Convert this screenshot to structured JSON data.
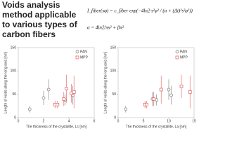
{
  "title_lines": [
    "Voids analysis",
    "method applicable",
    "to various types of",
    "carbon fibers"
  ],
  "equations": [
    "I_fiber(sφ) = c_fiber exp(−4ln2·s²φ² / (α + (Δt)²s²φ²))",
    "α = 4ln2/πs² + βπ²"
  ],
  "chart_data": [
    {
      "type": "scatter",
      "x_label": "The thickness of the crystallite, Lc [nm]",
      "y_label": "Length of voids along the long axis [nm]",
      "xlim": [
        0,
        6
      ],
      "xticks": [
        0,
        2,
        4,
        6
      ],
      "ylim": [
        0,
        150
      ],
      "yticks": [
        0,
        50,
        100,
        150
      ],
      "legend": "upper right",
      "series": [
        {
          "name": "PAN",
          "color": "#777777",
          "marker": "circle",
          "x": [
            0.9,
            2.0,
            2.4,
            3.7,
            4.3
          ],
          "values": [
            18,
            42,
            60,
            38,
            48
          ],
          "errors": [
            7,
            15,
            22,
            12,
            20
          ]
        },
        {
          "name": "MPP",
          "color": "#e05a5a",
          "marker": "square",
          "x": [
            2.9,
            3.1,
            3.6,
            3.8,
            4.2,
            4.4
          ],
          "values": [
            28,
            28,
            40,
            62,
            52,
            55
          ],
          "errors": [
            8,
            8,
            15,
            30,
            20,
            35
          ]
        }
      ]
    },
    {
      "type": "scatter",
      "x_label": "The thickness of the crystallite, La [nm]",
      "y_label": "Length of voids along the long axis [nm]",
      "xlim": [
        0,
        15
      ],
      "xticks": [
        0,
        5,
        10,
        15
      ],
      "ylim": [
        0,
        150
      ],
      "yticks": [
        0,
        50,
        100,
        150
      ],
      "legend": "upper right",
      "series": [
        {
          "name": "PAN",
          "color": "#777777",
          "marker": "circle",
          "x": [
            1.5,
            6.8,
            7.6,
            10.0,
            10.5
          ],
          "values": [
            18,
            40,
            38,
            60,
            48
          ],
          "errors": [
            7,
            15,
            12,
            22,
            20
          ]
        },
        {
          "name": "MPP",
          "color": "#e05a5a",
          "marker": "square",
          "x": [
            5.3,
            5.6,
            7.0,
            8.5,
            12.5,
            14.2
          ],
          "values": [
            28,
            28,
            40,
            60,
            67,
            55
          ],
          "errors": [
            8,
            8,
            15,
            30,
            25,
            35
          ]
        }
      ]
    }
  ]
}
